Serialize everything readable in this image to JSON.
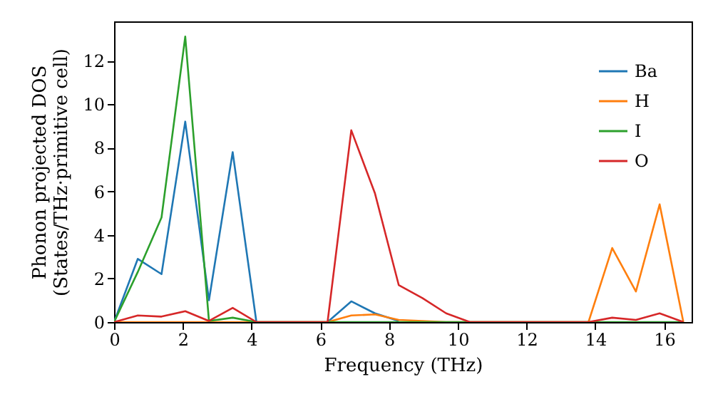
{
  "chart_data": {
    "type": "line",
    "xlabel": "Frequency (THz)",
    "ylabel": "Phonon projected DOS\n(States/THz·primitive cell)",
    "x": [
      0,
      0.69,
      1.38,
      2.07,
      2.76,
      3.45,
      4.14,
      4.83,
      5.52,
      6.21,
      6.9,
      7.59,
      8.28,
      8.97,
      9.66,
      10.35,
      11.04,
      11.73,
      12.42,
      13.11,
      13.8,
      14.49,
      15.18,
      15.87,
      16.56
    ],
    "series": [
      {
        "name": "Ba",
        "color": "#1f77b4",
        "values": [
          0,
          2.9,
          2.2,
          9.2,
          1.0,
          7.8,
          0,
          null,
          null,
          0,
          0.95,
          0.4,
          0.05,
          null,
          null,
          null,
          null,
          null,
          null,
          null,
          null,
          null,
          null,
          null,
          null
        ]
      },
      {
        "name": "H",
        "color": "#ff7f0e",
        "values": [
          0,
          0,
          0,
          0,
          0,
          0,
          0,
          0,
          0,
          0,
          0.3,
          0.35,
          0.1,
          0.05,
          0,
          0,
          0,
          0,
          0,
          0,
          0,
          3.4,
          1.4,
          5.4,
          0
        ]
      },
      {
        "name": "I",
        "color": "#2ca02c",
        "values": [
          0,
          2.3,
          4.8,
          13.1,
          0.05,
          0.2,
          0,
          0,
          0,
          0,
          0,
          0,
          0,
          0,
          0,
          0,
          0,
          0,
          0,
          0,
          0,
          0,
          0,
          0,
          0
        ]
      },
      {
        "name": "O",
        "color": "#d62728",
        "values": [
          0,
          0.3,
          0.25,
          0.5,
          0.05,
          0.65,
          0,
          0,
          0,
          0,
          8.8,
          5.9,
          1.7,
          1.1,
          0.4,
          0,
          0,
          0,
          0,
          0,
          0,
          0.2,
          0.1,
          0.4,
          0
        ]
      }
    ],
    "xlim": [
      0,
      16.8
    ],
    "xticks": [
      0,
      2,
      4,
      6,
      8,
      10,
      12,
      14,
      16
    ],
    "ylim": [
      0,
      13.8
    ],
    "yticks": [
      0,
      2,
      4,
      6,
      8,
      10,
      12
    ],
    "legend": "top right",
    "grid": false,
    "marker": "none",
    "line_style": "solid"
  }
}
